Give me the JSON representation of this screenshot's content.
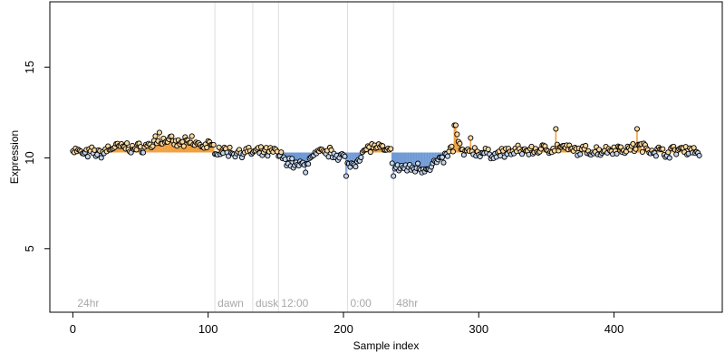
{
  "chart_data": {
    "type": "scatter",
    "title": "",
    "xlabel": "Sample index",
    "ylabel": "Expression",
    "xlim": [
      -17,
      480
    ],
    "ylim": [
      1.5,
      18.6
    ],
    "x_ticks": [
      0,
      100,
      200,
      300,
      400
    ],
    "y_ticks": [
      5,
      10,
      15
    ],
    "baseline": 10.3,
    "grid": false,
    "legend": "none",
    "vertical_markers": [
      {
        "x": 105,
        "label": "dawn"
      },
      {
        "x": 133,
        "label": "dusk"
      },
      {
        "x": 152,
        "label": "12:00"
      },
      {
        "x": 203,
        "label": "0:00"
      },
      {
        "x": 237,
        "label": "48hr"
      }
    ],
    "corner_label": {
      "x": 2,
      "label": "24hr"
    },
    "colors": {
      "above_baseline_stem": "#f0a040",
      "below_baseline_stem": "#6f9ad6",
      "point_above": "#fdd9a0",
      "point_below": "#c3d5ee",
      "point_edge": "#000000",
      "marker_line": "#dddddd",
      "marker_label": "#a8a8a8"
    },
    "anchors": [
      [
        0,
        10.5
      ],
      [
        5,
        10.3
      ],
      [
        10,
        10.2
      ],
      [
        15,
        10.35
      ],
      [
        20,
        10.2
      ],
      [
        25,
        10.45
      ],
      [
        30,
        10.6
      ],
      [
        35,
        10.6
      ],
      [
        40,
        10.6
      ],
      [
        45,
        10.5
      ],
      [
        50,
        10.55
      ],
      [
        55,
        10.65
      ],
      [
        60,
        10.8
      ],
      [
        65,
        10.9
      ],
      [
        70,
        11.0
      ],
      [
        75,
        10.8
      ],
      [
        80,
        10.8
      ],
      [
        85,
        10.85
      ],
      [
        90,
        10.8
      ],
      [
        95,
        10.7
      ],
      [
        100,
        10.7
      ],
      [
        105,
        10.5
      ],
      [
        110,
        10.4
      ],
      [
        115,
        10.35
      ],
      [
        120,
        10.3
      ],
      [
        125,
        10.35
      ],
      [
        130,
        10.3
      ],
      [
        135,
        10.3
      ],
      [
        140,
        10.3
      ],
      [
        145,
        10.3
      ],
      [
        150,
        10.35
      ],
      [
        155,
        10.0
      ],
      [
        160,
        9.8
      ],
      [
        165,
        9.6
      ],
      [
        170,
        9.6
      ],
      [
        175,
        9.9
      ],
      [
        180,
        10.2
      ],
      [
        185,
        10.3
      ],
      [
        190,
        10.3
      ],
      [
        195,
        10.2
      ],
      [
        200,
        10.1
      ],
      [
        203,
        9.6
      ],
      [
        208,
        9.7
      ],
      [
        212,
        10.1
      ],
      [
        216,
        10.4
      ],
      [
        220,
        10.6
      ],
      [
        225,
        10.6
      ],
      [
        230,
        10.4
      ],
      [
        235,
        10.3
      ],
      [
        238,
        9.3
      ],
      [
        243,
        9.5
      ],
      [
        250,
        9.4
      ],
      [
        255,
        9.5
      ],
      [
        260,
        9.4
      ],
      [
        265,
        9.6
      ],
      [
        270,
        9.8
      ],
      [
        275,
        10.0
      ],
      [
        280,
        10.5
      ],
      [
        285,
        10.7
      ],
      [
        290,
        10.2
      ],
      [
        295,
        10.4
      ],
      [
        300,
        10.3
      ],
      [
        310,
        10.2
      ],
      [
        320,
        10.3
      ],
      [
        330,
        10.4
      ],
      [
        340,
        10.4
      ],
      [
        350,
        10.5
      ],
      [
        360,
        10.6
      ],
      [
        370,
        10.4
      ],
      [
        380,
        10.4
      ],
      [
        390,
        10.4
      ],
      [
        400,
        10.5
      ],
      [
        410,
        10.5
      ],
      [
        420,
        10.6
      ],
      [
        430,
        10.4
      ],
      [
        440,
        10.3
      ],
      [
        450,
        10.5
      ],
      [
        460,
        10.4
      ],
      [
        463,
        10.3
      ]
    ],
    "n_samples": 464,
    "noise": 0.22,
    "spikes": [
      {
        "x": 282,
        "y": 11.8
      },
      {
        "x": 283,
        "y": 11.8
      },
      {
        "x": 284,
        "y": 11.3
      },
      {
        "x": 294,
        "y": 11.1
      },
      {
        "x": 357,
        "y": 11.6
      },
      {
        "x": 417,
        "y": 11.6
      },
      {
        "x": 64,
        "y": 11.4
      },
      {
        "x": 61,
        "y": 11.2
      },
      {
        "x": 88,
        "y": 11.2
      },
      {
        "x": 202,
        "y": 9.0
      },
      {
        "x": 237,
        "y": 9.0
      },
      {
        "x": 172,
        "y": 9.2
      }
    ]
  }
}
